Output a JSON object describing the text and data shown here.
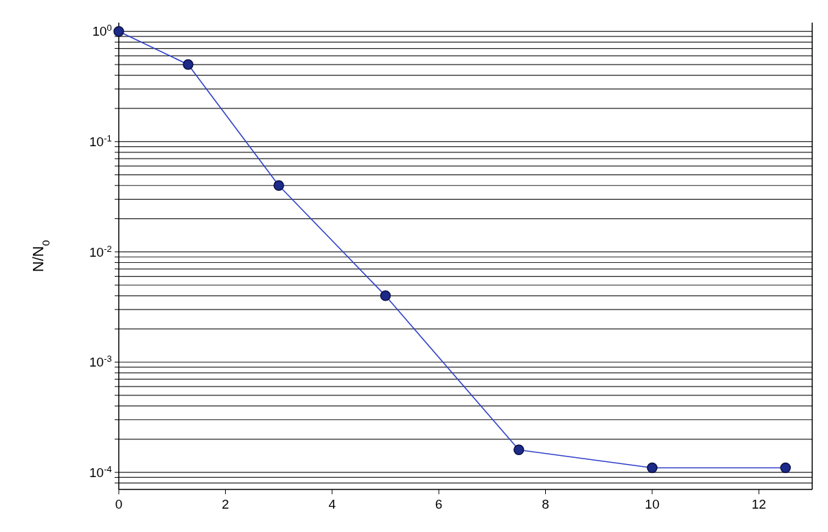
{
  "chart_data": {
    "type": "line",
    "ylabel": "N/N$_{0}$",
    "log": "y",
    "grid": "y",
    "marker": "circle",
    "line_style": "solid",
    "xlim": [
      0,
      13
    ],
    "xticks": [
      0,
      2,
      4,
      6,
      8,
      10,
      12
    ],
    "ylim": [
      7e-05,
      1.2
    ],
    "yticks": [
      {
        "value": 1,
        "label": "10$^{0}$"
      },
      {
        "value": 0.9,
        "label": null
      },
      {
        "value": 0.8,
        "label": null
      },
      {
        "value": 0.7,
        "label": null
      },
      {
        "value": 0.6,
        "label": null
      },
      {
        "value": 0.5,
        "label": null
      },
      {
        "value": 0.4,
        "label": null
      },
      {
        "value": 0.3,
        "label": null
      },
      {
        "value": 0.2,
        "label": null
      },
      {
        "value": 0.1,
        "label": "10$^{-1}$"
      },
      {
        "value": 0.09,
        "label": null
      },
      {
        "value": 0.08,
        "label": null
      },
      {
        "value": 0.07,
        "label": null
      },
      {
        "value": 0.06,
        "label": null
      },
      {
        "value": 0.05,
        "label": null
      },
      {
        "value": 0.04,
        "label": null
      },
      {
        "value": 0.03,
        "label": null
      },
      {
        "value": 0.02,
        "label": null
      },
      {
        "value": 0.01,
        "label": "10$^{-2}$"
      },
      {
        "value": 0.009,
        "label": null
      },
      {
        "value": 0.008,
        "label": null
      },
      {
        "value": 0.007,
        "label": null
      },
      {
        "value": 0.006,
        "label": null
      },
      {
        "value": 0.005,
        "label": null
      },
      {
        "value": 0.004,
        "label": null
      },
      {
        "value": 0.003,
        "label": null
      },
      {
        "value": 0.002,
        "label": null
      },
      {
        "value": 0.001,
        "label": "10$^{-3}$"
      },
      {
        "value": 0.0009,
        "label": null
      },
      {
        "value": 0.0008,
        "label": null
      },
      {
        "value": 0.0007,
        "label": null
      },
      {
        "value": 0.0006,
        "label": null
      },
      {
        "value": 0.0005,
        "label": null
      },
      {
        "value": 0.0004,
        "label": null
      },
      {
        "value": 0.0003,
        "label": null
      },
      {
        "value": 0.0002,
        "label": null
      },
      {
        "value": 0.0001,
        "label": "10$^{-4}$"
      },
      {
        "value": 9e-05,
        "label": null
      },
      {
        "value": 8e-05,
        "label": null
      }
    ],
    "series": [
      {
        "color": "#2f3fc8",
        "x": [
          0,
          1.3,
          3,
          5,
          7.5,
          10,
          12.5
        ],
        "values": [
          1,
          0.5,
          0.04,
          0.004,
          0.00016,
          0.00011,
          0.00011
        ]
      }
    ]
  }
}
